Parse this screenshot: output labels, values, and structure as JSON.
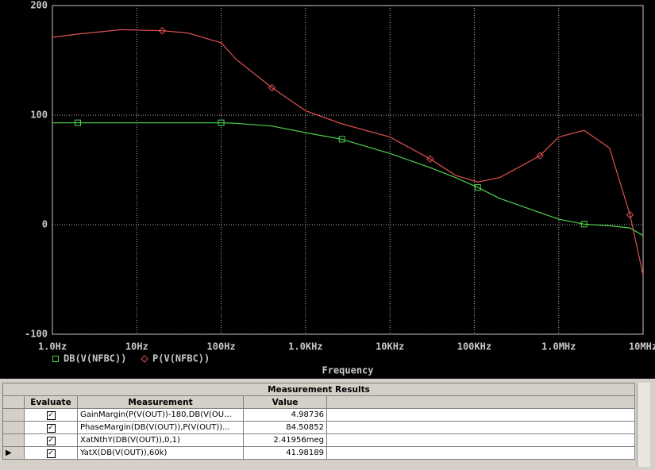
{
  "chart_data": {
    "type": "line",
    "x_label": "Frequency",
    "log_x": true,
    "grid": true,
    "xlim": [
      1,
      10000000
    ],
    "xticks": [
      {
        "value": 1,
        "label": "1.0Hz"
      },
      {
        "value": 10,
        "label": "10Hz"
      },
      {
        "value": 100,
        "label": "100Hz"
      },
      {
        "value": 1000,
        "label": "1.0KHz"
      },
      {
        "value": 10000,
        "label": "10KHz"
      },
      {
        "value": 100000,
        "label": "100KHz"
      },
      {
        "value": 1000000,
        "label": "1.0MHz"
      },
      {
        "value": 10000000,
        "label": "10MHz"
      }
    ],
    "ylim": [
      -100,
      200
    ],
    "yticks": [
      -100,
      0,
      100,
      200
    ],
    "x": [
      1,
      2,
      6.5,
      20,
      40,
      100,
      150,
      400,
      1000,
      2700,
      10000,
      30000,
      60000,
      110000,
      200000,
      600000,
      1000000,
      2000000,
      4000000,
      7000000,
      10000000
    ],
    "series": [
      {
        "name": "DB(V(NFBC))",
        "color": "#4cd44c",
        "marker": "square",
        "values": [
          93,
          93,
          93,
          93,
          93,
          93,
          92.5,
          90,
          84,
          78,
          65,
          52,
          43,
          34,
          24,
          11,
          5,
          0.5,
          -1,
          -3,
          -10
        ]
      },
      {
        "name": "P(V(NFBC))",
        "color": "#e05050",
        "marker": "diamond",
        "values": [
          171,
          174,
          178,
          177,
          175,
          166,
          151,
          125,
          104,
          92,
          80,
          60,
          45,
          39,
          43,
          63,
          80,
          86,
          70,
          9,
          -46
        ]
      }
    ]
  },
  "table": {
    "title": "Measurement Results",
    "headers": [
      "Evaluate",
      "Measurement",
      "Value"
    ],
    "rows": [
      [
        "GainMargin(P(V(OUT))-180,DB(V(OU...",
        "4.98736"
      ],
      [
        "PhaseMargin(DB(V(OUT)),P(V(OUT))...",
        "84.50852"
      ],
      [
        "XatNthY(DB(V(OUT)),0,1)",
        "2.41956meg"
      ],
      [
        "YatX(DB(V(OUT)),60k)",
        "41.98189"
      ]
    ]
  }
}
